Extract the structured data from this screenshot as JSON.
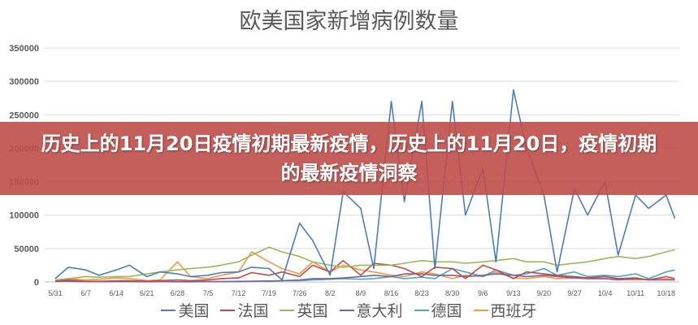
{
  "banner": {
    "text": "历史上的11月20日疫情初期最新疫情，历史上的11月20日，疫情初期的最新疫情洞察"
  },
  "chart_data": {
    "type": "line",
    "title": "欧美国家新增病例数量",
    "xlabel": "",
    "ylabel": "",
    "ylim": [
      0,
      350000
    ],
    "yticks": [
      0,
      50000,
      100000,
      150000,
      200000,
      250000,
      300000,
      350000
    ],
    "ytick_labels": [
      "0",
      "50000",
      "100000",
      "150000",
      "200000",
      "250000",
      "300000",
      "350000"
    ],
    "xtick_labels": [
      "5/31",
      "6/7",
      "6/14",
      "6/21",
      "6/28",
      "7/5",
      "7/12",
      "7/19",
      "7/26",
      "8/2",
      "8/9",
      "8/16",
      "8/23",
      "8/30",
      "9/6",
      "9/13",
      "9/20",
      "9/27",
      "10/4",
      "10/11",
      "10/18"
    ],
    "grid": true,
    "legend_position": "bottom",
    "x": [
      "5/31",
      "6/3",
      "6/7",
      "6/10",
      "6/14",
      "6/17",
      "6/21",
      "6/24",
      "6/28",
      "7/1",
      "7/5",
      "7/8",
      "7/12",
      "7/15",
      "7/19",
      "7/22",
      "7/26",
      "7/29",
      "8/2",
      "8/5",
      "8/9",
      "8/12",
      "8/16",
      "8/19",
      "8/23",
      "8/26",
      "8/30",
      "9/2",
      "9/6",
      "9/9",
      "9/13",
      "9/16",
      "9/20",
      "9/23",
      "9/27",
      "9/30",
      "10/4",
      "10/7",
      "10/11",
      "10/14",
      "10/18",
      "10/20"
    ],
    "series": [
      {
        "name": "美国",
        "color": "#4a7ebb",
        "values": [
          5000,
          22000,
          18000,
          10000,
          18000,
          25000,
          8000,
          15000,
          12000,
          8000,
          10000,
          14000,
          15000,
          22000,
          20000,
          3000,
          88000,
          62000,
          10000,
          135000,
          110000,
          20000,
          270000,
          120000,
          270000,
          20000,
          270000,
          100000,
          170000,
          30000,
          287000,
          200000,
          130000,
          15000,
          140000,
          100000,
          150000,
          40000,
          130000,
          110000,
          130000,
          95000
        ]
      },
      {
        "name": "法国",
        "color": "#be4b48",
        "values": [
          1000,
          3000,
          1000,
          1000,
          1500,
          2000,
          1000,
          2000,
          3000,
          2000,
          3000,
          5000,
          6000,
          14000,
          10000,
          15000,
          8000,
          25000,
          15000,
          32000,
          10000,
          28000,
          25000,
          20000,
          8000,
          22000,
          20000,
          5000,
          25000,
          18000,
          5000,
          15000,
          12000,
          10000,
          8000,
          6000,
          8000,
          5000,
          6000,
          3000,
          8000,
          5000
        ]
      },
      {
        "name": "英国",
        "color": "#98b954",
        "values": [
          3000,
          5000,
          8000,
          7000,
          8000,
          8000,
          12000,
          15000,
          18000,
          20000,
          22000,
          25000,
          30000,
          40000,
          52000,
          45000,
          38000,
          30000,
          25000,
          22000,
          25000,
          25000,
          25000,
          28000,
          32000,
          30000,
          30000,
          28000,
          30000,
          32000,
          35000,
          30000,
          30000,
          25000,
          28000,
          30000,
          35000,
          38000,
          35000,
          38000,
          45000,
          48000
        ]
      },
      {
        "name": "意大利",
        "color": "#7d60a0",
        "values": [
          1000,
          1000,
          500,
          500,
          500,
          500,
          300,
          500,
          300,
          300,
          500,
          500,
          500,
          1000,
          1500,
          2000,
          3000,
          5000,
          5000,
          6000,
          8000,
          10000,
          8000,
          12000,
          12000,
          10000,
          10000,
          8000,
          10000,
          12000,
          10000,
          8000,
          10000,
          8000,
          6000,
          5000,
          5000,
          3000,
          5000,
          3000,
          3000,
          3000
        ]
      },
      {
        "name": "德国",
        "color": "#46aac4",
        "values": [
          1000,
          1000,
          500,
          500,
          500,
          500,
          500,
          500,
          500,
          500,
          500,
          500,
          1000,
          1000,
          1000,
          2000,
          2000,
          3000,
          4000,
          5000,
          4000,
          5000,
          8000,
          5000,
          7000,
          5000,
          20000,
          15000,
          8000,
          18000,
          10000,
          12000,
          20000,
          10000,
          15000,
          8000,
          10000,
          8000,
          12000,
          5000,
          15000,
          18000
        ]
      },
      {
        "name": "西班牙",
        "color": "#f79646",
        "values": [
          1000,
          5000,
          3000,
          4000,
          6000,
          5000,
          2000,
          3000,
          30000,
          8000,
          5000,
          10000,
          15000,
          45000,
          30000,
          20000,
          12000,
          30000,
          15000,
          25000,
          18000,
          15000,
          10000,
          8000,
          15000,
          12000,
          5000,
          10000,
          8000,
          15000,
          6000,
          5000,
          8000,
          5000,
          6000,
          5000,
          5000,
          4000,
          3000,
          4000,
          5000,
          3000
        ]
      }
    ]
  }
}
